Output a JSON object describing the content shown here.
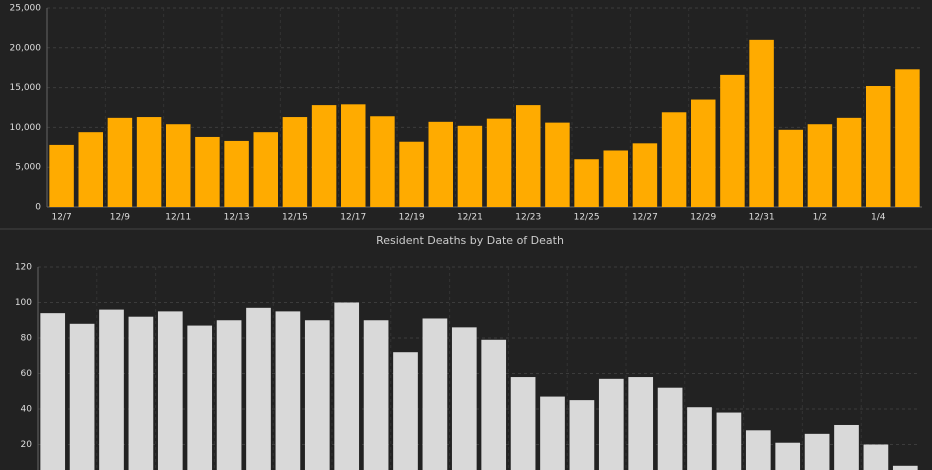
{
  "chart_data": [
    {
      "type": "bar",
      "color": "#ffab00",
      "categories": [
        "12/7",
        null,
        "12/9",
        null,
        "12/11",
        null,
        "12/13",
        null,
        "12/15",
        null,
        "12/17",
        null,
        "12/19",
        null,
        "12/21",
        null,
        "12/23",
        null,
        "12/25",
        null,
        "12/27",
        null,
        "12/29",
        null,
        "12/31",
        null,
        "1/2",
        null,
        "1/4",
        null
      ],
      "values": [
        7800,
        9400,
        11200,
        11300,
        10400,
        8800,
        8300,
        9400,
        11300,
        12800,
        12900,
        11400,
        8200,
        10700,
        10200,
        11100,
        12800,
        10600,
        6000,
        7100,
        8000,
        11900,
        13500,
        16600,
        21000,
        9700,
        10400,
        11200,
        15200,
        17300
      ],
      "ylim": [
        0,
        25000
      ],
      "yticks": [
        0,
        {
          "value": 5000,
          "label": "5,000"
        },
        {
          "value": 10000,
          "label": "10,000"
        },
        {
          "value": 15000,
          "label": "15,000"
        },
        {
          "value": 20000,
          "label": "20,000"
        },
        {
          "value": 25000,
          "label": "25,000"
        }
      ],
      "grid": true
    },
    {
      "type": "bar",
      "title": "Resident Deaths by Date of Death",
      "color": "#d9d9d9",
      "values": [
        94,
        88,
        96,
        92,
        95,
        87,
        90,
        97,
        95,
        90,
        100,
        90,
        72,
        91,
        86,
        79,
        58,
        47,
        45,
        57,
        58,
        52,
        41,
        38,
        28,
        21,
        26,
        31,
        20,
        8
      ],
      "ylim": [
        0,
        120
      ],
      "yticks": [
        20,
        40,
        60,
        80,
        100,
        120
      ],
      "grid": true
    }
  ]
}
